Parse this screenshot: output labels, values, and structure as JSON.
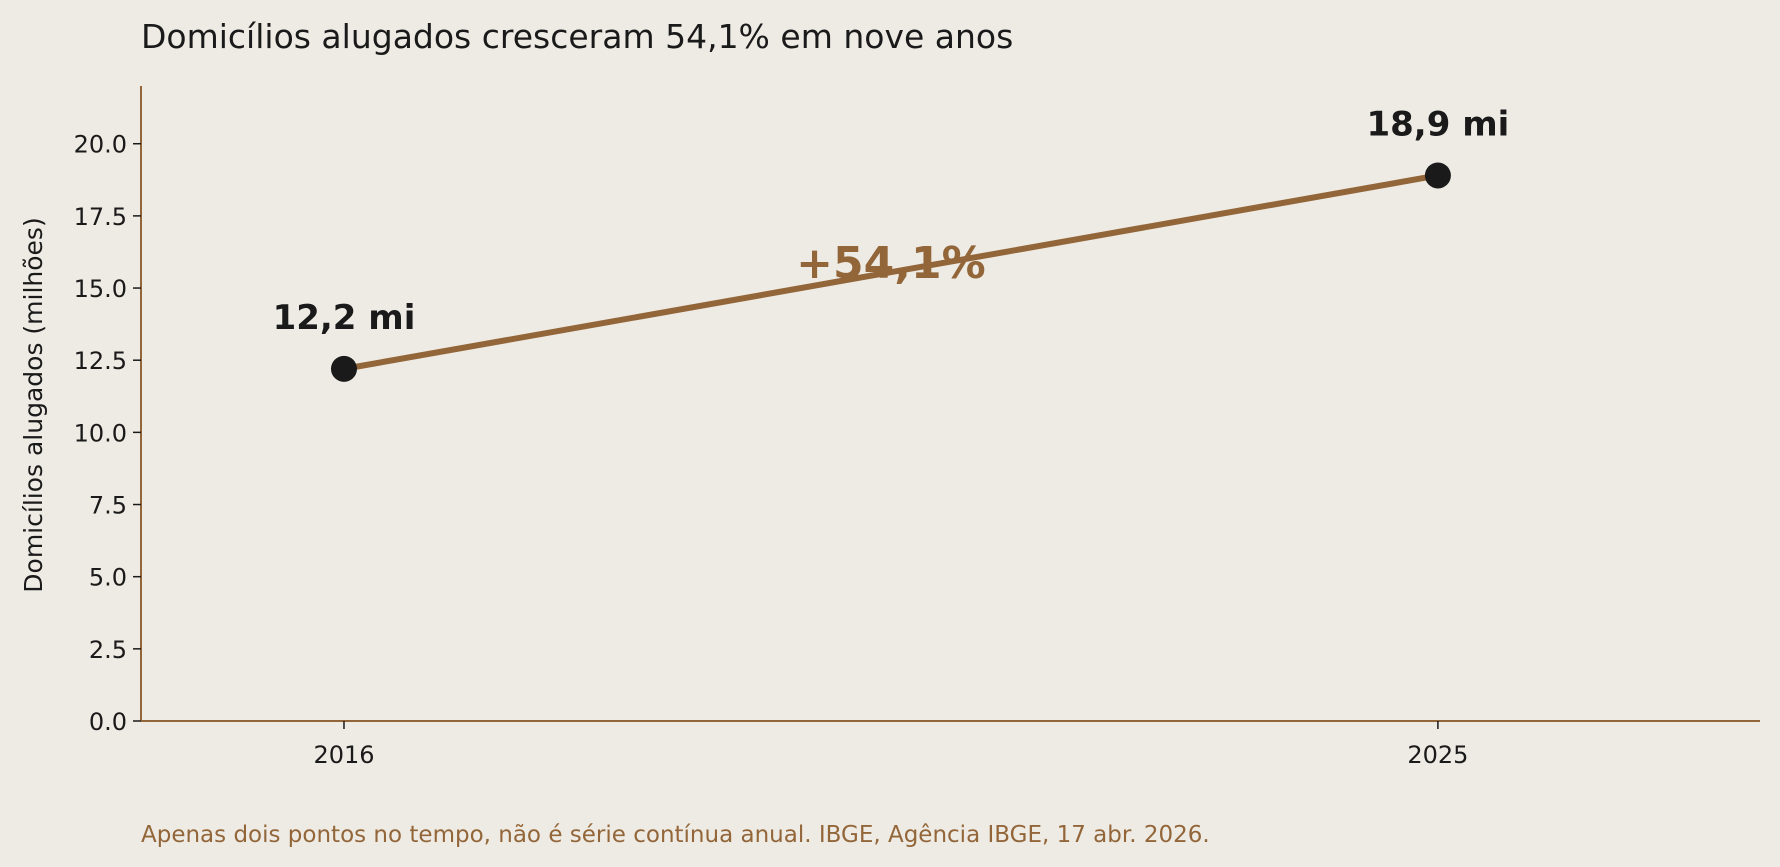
{
  "colors": {
    "background": "#eeebe4",
    "line": "#93663a",
    "marker": "#1a1a1a",
    "axis": "#93663a",
    "text": "#1a1a1a",
    "accent": "#93663a"
  },
  "footnote": "Apenas dois pontos no tempo, não é série contínua anual. IBGE, Agência IBGE, 17 abr. 2026.",
  "chart_data": {
    "type": "line",
    "title": "Domicílios alugados cresceram 54,1% em nove anos",
    "xlabel": "",
    "ylabel": "Domicílios alugados (milhões)",
    "x": [
      2016,
      2025
    ],
    "x_tick_labels": [
      "2016",
      "2025"
    ],
    "series": [
      {
        "values": [
          12.2,
          18.9
        ],
        "point_labels": [
          "12,2 mi",
          "18,9 mi"
        ]
      }
    ],
    "xlim": [
      2014.33,
      2027.65
    ],
    "ylim": [
      0,
      22
    ],
    "y_ticks": [
      0,
      2.5,
      5,
      7.5,
      10,
      12.5,
      15,
      17.5,
      20
    ],
    "y_tick_labels": [
      "0.0",
      "2.5",
      "5.0",
      "7.5",
      "10.0",
      "12.5",
      "15.0",
      "17.5",
      "20.0"
    ],
    "annotations": [
      {
        "text": "+54,1%",
        "x": 2020.5,
        "y": 15.9
      }
    ],
    "grid": false,
    "legend": "none"
  }
}
